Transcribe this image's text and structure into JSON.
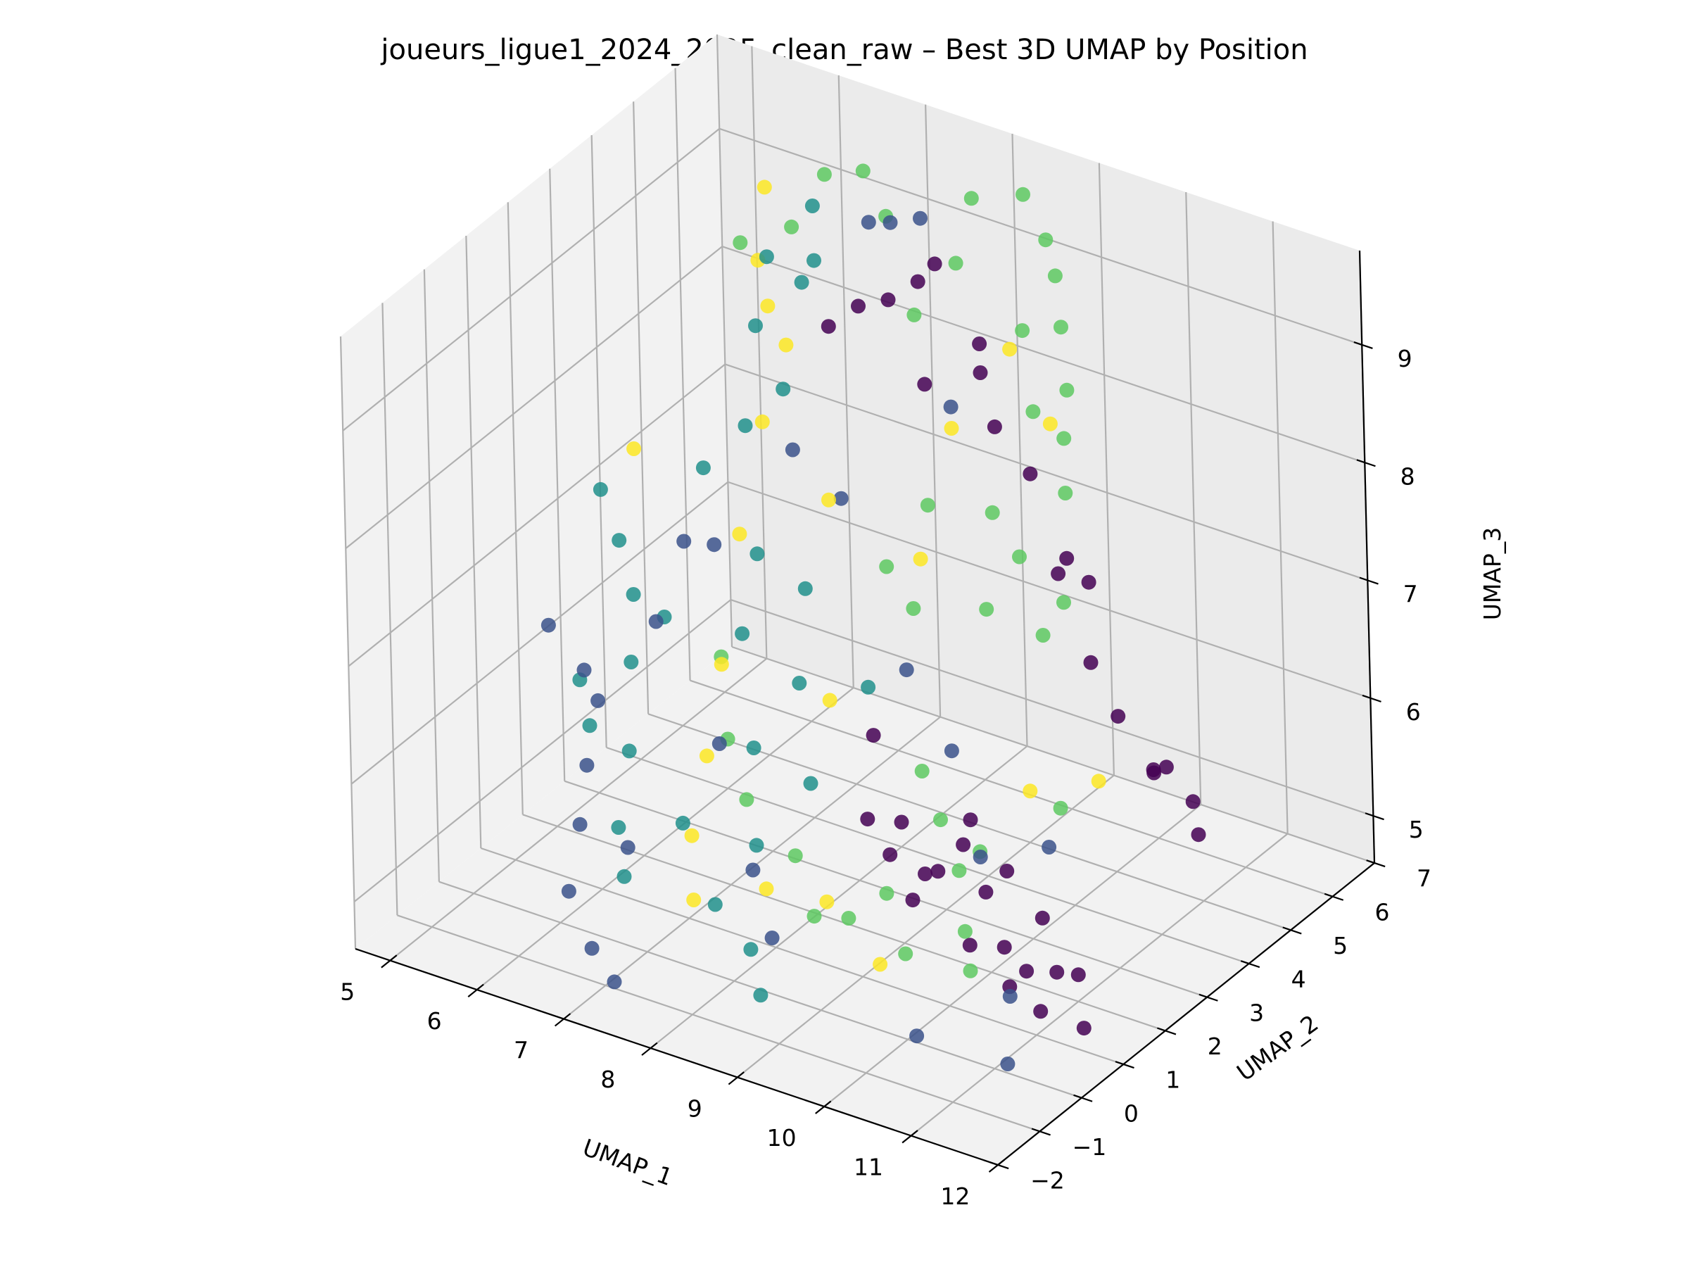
{
  "chart_data": {
    "type": "scatter",
    "projection": "3d",
    "title": "joueurs_ligue1_2024_2025_clean_raw – Best 3D UMAP by Position",
    "xlabel": "UMAP_1",
    "ylabel": "UMAP_2",
    "zlabel": "UMAP_3",
    "xlim": [
      4.6,
      12.0
    ],
    "ylim": [
      -2.0,
      7.0
    ],
    "zlim": [
      4.6,
      9.8
    ],
    "x_ticks": [
      "5",
      "6",
      "7",
      "8",
      "9",
      "10",
      "11",
      "12"
    ],
    "y_ticks": [
      "−2",
      "−1",
      "0",
      "1",
      "2",
      "3",
      "4",
      "5",
      "6",
      "7"
    ],
    "z_ticks": [
      "5",
      "6",
      "7",
      "8",
      "9"
    ],
    "grid": true,
    "colormap": "viridis",
    "colors": [
      "#440154",
      "#3b528b",
      "#21918c",
      "#5ec962",
      "#fde725"
    ],
    "series": [
      {
        "values": [
          [
            10.0,
            0.8,
            5.8
          ],
          [
            10.3,
            0.8,
            6.1
          ],
          [
            10.6,
            0.7,
            5.8
          ],
          [
            10.8,
            0.8,
            6.0
          ],
          [
            11.2,
            0.8,
            5.7
          ],
          [
            11.5,
            0.5,
            5.4
          ],
          [
            11.4,
            0.3,
            5.1
          ],
          [
            11.7,
            0.6,
            5.4
          ],
          [
            11.0,
            0.8,
            5.2
          ],
          [
            10.7,
            0.9,
            5.3
          ],
          [
            9.8,
            0.9,
            5.7
          ],
          [
            9.6,
            1.0,
            5.4
          ],
          [
            10.4,
            0.7,
            5.3
          ],
          [
            9.2,
            1.3,
            5.6
          ],
          [
            8.9,
            1.4,
            5.8
          ],
          [
            10.9,
            0.6,
            5.1
          ],
          [
            11.8,
            0.5,
            5.0
          ],
          [
            8.7,
            4.7,
            8.6
          ],
          [
            9.0,
            4.4,
            8.3
          ],
          [
            9.4,
            4.4,
            8.0
          ],
          [
            9.7,
            4.6,
            7.3
          ],
          [
            10.0,
            4.5,
            7.2
          ],
          [
            10.1,
            4.3,
            6.6
          ],
          [
            10.6,
            4.7,
            5.7
          ],
          [
            10.8,
            4.6,
            5.8
          ],
          [
            11.0,
            4.8,
            5.5
          ],
          [
            11.5,
            3.9,
            5.6
          ],
          [
            11.0,
            3.9,
            6.0
          ],
          [
            10.5,
            4.1,
            6.3
          ],
          [
            7.0,
            4.6,
            8.6
          ],
          [
            7.4,
            4.5,
            8.9
          ],
          [
            7.7,
            4.6,
            9.0
          ],
          [
            8.0,
            4.7,
            9.2
          ],
          [
            8.2,
            4.7,
            9.4
          ],
          [
            8.4,
            5.3,
            8.6
          ],
          [
            8.0,
            4.8,
            8.3
          ],
          [
            9.3,
            5.2,
            6.9
          ],
          [
            8.1,
            3.2,
            5.8
          ],
          [
            8.6,
            2.8,
            5.3
          ],
          [
            9.5,
            2.6,
            5.6
          ]
        ]
      },
      {
        "values": [
          [
            5.2,
            1.5,
            6.5
          ],
          [
            5.7,
            1.3,
            6.3
          ],
          [
            6.0,
            1.0,
            6.2
          ],
          [
            6.2,
            0.3,
            5.9
          ],
          [
            6.5,
            -0.5,
            5.7
          ],
          [
            6.6,
            -1.0,
            5.3
          ],
          [
            7.0,
            -1.3,
            5.0
          ],
          [
            7.4,
            -1.6,
            4.9
          ],
          [
            7.0,
            -0.4,
            5.6
          ],
          [
            6.4,
            1.6,
            6.8
          ],
          [
            6.3,
            2.5,
            7.2
          ],
          [
            6.7,
            2.4,
            7.3
          ],
          [
            7.3,
            1.2,
            6.1
          ],
          [
            8.0,
            0.5,
            5.4
          ],
          [
            8.6,
            -0.3,
            5.2
          ],
          [
            7.0,
            5.6,
            9.2
          ],
          [
            7.3,
            5.5,
            9.3
          ],
          [
            7.5,
            5.8,
            9.3
          ],
          [
            8.2,
            5.0,
            8.1
          ],
          [
            8.8,
            2.6,
            6.7
          ],
          [
            9.5,
            2.2,
            6.3
          ],
          [
            10.2,
            1.4,
            5.8
          ],
          [
            10.9,
            1.6,
            6.0
          ],
          [
            11.0,
            0.4,
            5.1
          ],
          [
            10.4,
            -0.6,
            4.9
          ],
          [
            11.3,
            -0.3,
            4.8
          ],
          [
            6.9,
            5.0,
            7.0
          ],
          [
            6.5,
            4.7,
            7.4
          ]
        ]
      },
      {
        "values": [
          [
            5.1,
            3.0,
            7.2
          ],
          [
            5.4,
            2.8,
            6.9
          ],
          [
            5.7,
            2.5,
            6.6
          ],
          [
            5.4,
            1.8,
            6.0
          ],
          [
            5.7,
            1.4,
            5.8
          ],
          [
            6.0,
            1.8,
            6.3
          ],
          [
            6.3,
            2.0,
            6.7
          ],
          [
            6.4,
            0.9,
            5.9
          ],
          [
            6.6,
            0.2,
            5.5
          ],
          [
            6.9,
            -0.3,
            5.3
          ],
          [
            6.2,
            3.2,
            7.6
          ],
          [
            6.6,
            3.4,
            8.0
          ],
          [
            6.9,
            3.7,
            8.3
          ],
          [
            6.7,
            4.6,
            8.9
          ],
          [
            6.4,
            4.4,
            9.1
          ],
          [
            6.4,
            4.1,
            8.6
          ],
          [
            6.9,
            3.0,
            7.1
          ],
          [
            7.1,
            2.2,
            6.7
          ],
          [
            7.5,
            1.6,
            6.0
          ],
          [
            7.9,
            0.8,
            5.5
          ],
          [
            7.8,
            0.0,
            5.2
          ],
          [
            8.3,
            -0.2,
            5.0
          ],
          [
            8.6,
            -0.6,
            4.8
          ],
          [
            7.4,
            3.1,
            6.9
          ],
          [
            7.7,
            2.3,
            6.4
          ],
          [
            8.2,
            1.5,
            5.9
          ],
          [
            8.3,
            2.7,
            6.4
          ],
          [
            7.2,
            0.5,
            5.6
          ],
          [
            6.7,
            4.9,
            9.0
          ],
          [
            6.5,
            5.3,
            9.3
          ]
        ]
      },
      {
        "values": [
          [
            6.8,
            5.9,
            9.5
          ],
          [
            7.2,
            5.6,
            9.3
          ],
          [
            8.2,
            5.6,
            9.7
          ],
          [
            8.7,
            5.8,
            9.8
          ],
          [
            9.1,
            5.5,
            9.6
          ],
          [
            9.3,
            5.3,
            9.4
          ],
          [
            9.5,
            5.0,
            9.1
          ],
          [
            9.7,
            4.7,
            8.7
          ],
          [
            9.8,
            4.4,
            8.4
          ],
          [
            10.0,
            4.0,
            8.1
          ],
          [
            9.1,
            4.9,
            9.0
          ],
          [
            9.4,
            4.5,
            8.5
          ],
          [
            9.0,
            4.3,
            7.6
          ],
          [
            9.3,
            4.3,
            7.3
          ],
          [
            9.8,
            3.8,
            6.9
          ],
          [
            8.6,
            3.2,
            7.0
          ],
          [
            8.2,
            3.4,
            7.2
          ],
          [
            9.1,
            2.3,
            6.0
          ],
          [
            9.5,
            1.9,
            5.8
          ],
          [
            9.8,
            1.7,
            5.5
          ],
          [
            10.1,
            1.2,
            5.2
          ],
          [
            10.3,
            0.9,
            5.0
          ],
          [
            9.6,
            0.8,
            5.0
          ],
          [
            9.2,
            1.2,
            5.3
          ],
          [
            8.9,
            0.9,
            5.1
          ],
          [
            8.6,
            0.7,
            5.1
          ],
          [
            8.2,
            1.1,
            5.4
          ],
          [
            7.6,
            1.2,
            5.7
          ],
          [
            7.2,
            1.6,
            6.0
          ],
          [
            6.8,
            2.3,
            6.4
          ],
          [
            5.8,
            5.0,
            8.9
          ],
          [
            6.3,
            5.2,
            9.1
          ],
          [
            6.4,
            5.8,
            9.4
          ],
          [
            7.7,
            5.2,
            8.7
          ],
          [
            8.0,
            5.6,
            9.1
          ],
          [
            8.4,
            4.0,
            7.6
          ],
          [
            9.2,
            3.7,
            7.0
          ],
          [
            10.0,
            3.9,
            7.2
          ],
          [
            10.6,
            2.5,
            6.0
          ],
          [
            9.9,
            2.0,
            5.6
          ]
        ]
      },
      {
        "values": [
          [
            5.2,
            3.6,
            7.4
          ],
          [
            5.8,
            5.6,
            9.2
          ],
          [
            6.0,
            5.0,
            8.8
          ],
          [
            6.3,
            4.6,
            8.6
          ],
          [
            6.6,
            4.4,
            8.4
          ],
          [
            6.7,
            3.6,
            8.0
          ],
          [
            6.8,
            2.8,
            7.3
          ],
          [
            7.0,
            1.9,
            6.5
          ],
          [
            7.2,
            1.1,
            6.0
          ],
          [
            7.4,
            0.3,
            5.6
          ],
          [
            7.7,
            -0.3,
            5.3
          ],
          [
            8.3,
            0.2,
            5.4
          ],
          [
            8.8,
            0.6,
            5.3
          ],
          [
            9.5,
            0.4,
            5.0
          ],
          [
            8.0,
            2.4,
            6.3
          ],
          [
            8.4,
            3.8,
            7.2
          ],
          [
            8.7,
            5.4,
            8.6
          ],
          [
            9.3,
            5.1,
            8.2
          ],
          [
            10.3,
            2.4,
            6.1
          ],
          [
            11.0,
            2.6,
            6.3
          ],
          [
            8.3,
            4.8,
            8.0
          ],
          [
            7.3,
            3.9,
            7.4
          ]
        ]
      }
    ]
  }
}
